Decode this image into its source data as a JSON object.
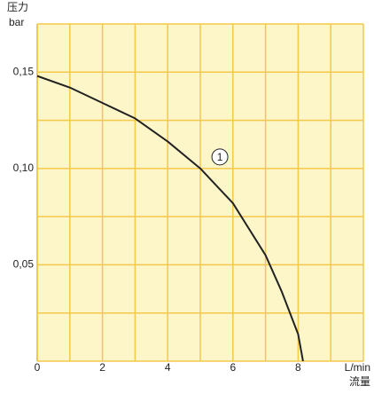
{
  "chart_data": {
    "type": "line",
    "y_label": "压力",
    "y_unit": "bar",
    "x_label": "流量",
    "x_unit": "L/min",
    "x": [
      0,
      1,
      2,
      3,
      4,
      5,
      6,
      7,
      7.5,
      8,
      8.15
    ],
    "series": [
      {
        "name": "1",
        "color": "#222222",
        "values": [
          0.148,
          0.142,
          0.134,
          0.126,
          0.114,
          0.1,
          0.082,
          0.055,
          0.036,
          0.014,
          0
        ]
      }
    ],
    "annotation": {
      "text": "1",
      "x": 5.6,
      "y": 0.106
    },
    "xlim": [
      0,
      10
    ],
    "ylim": [
      0,
      0.175
    ],
    "xticks": [
      0,
      2,
      4,
      6,
      8
    ],
    "yticks": [
      {
        "value": 0.05,
        "label": "0,05"
      },
      {
        "value": 0.1,
        "label": "0,10"
      },
      {
        "value": 0.15,
        "label": "0,15"
      }
    ],
    "xgrid": [
      0,
      1,
      2,
      3,
      4,
      5,
      6,
      7,
      8,
      9,
      10
    ],
    "ygrid": [
      0,
      0.025,
      0.05,
      0.075,
      0.1,
      0.125,
      0.15,
      0.175
    ],
    "plot_color": "#fdf6c9",
    "grid_color": "#f4c84a"
  }
}
